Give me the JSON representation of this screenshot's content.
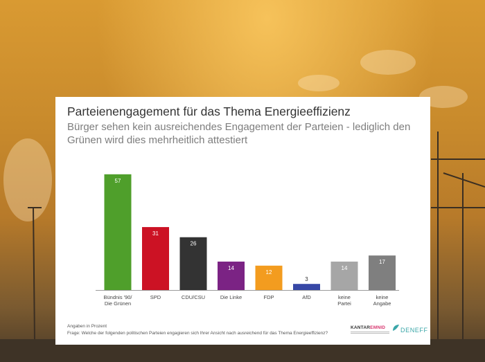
{
  "header": {
    "title": "Parteienengagement für das Thema Energieeffizienz",
    "subtitle": "Bürger sehen kein ausreichendes Engagement der Parteien - lediglich den Grünen wird dies mehrheitlich attestiert"
  },
  "footer": {
    "note_units": "Angaben in Prozent",
    "note_question": "Frage: Welche der folgenden politischen Parteien engagieren sich Ihrer Ansicht nach ausreichend für das Thema Energieeffizienz?",
    "logo_kantar_1": "KANTAR",
    "logo_kantar_2": "EMNID",
    "logo_deneff": "DENEFF"
  },
  "chart_data": {
    "type": "bar",
    "categories": [
      [
        "Bündnis '90/",
        "Die Grünen"
      ],
      [
        "SPD"
      ],
      [
        "CDU/CSU"
      ],
      [
        "Die Linke"
      ],
      [
        "FDP"
      ],
      [
        "AfD"
      ],
      [
        "keine",
        "Partei"
      ],
      [
        "keine",
        "Angabe"
      ]
    ],
    "values": [
      57,
      31,
      26,
      14,
      12,
      3,
      14,
      17
    ],
    "colors": [
      "#4f9f2b",
      "#cc1224",
      "#333333",
      "#7b2384",
      "#f39c1f",
      "#3748a6",
      "#a6a6a6",
      "#7f7f7f"
    ],
    "label_colors": [
      "#ffffff",
      "#ffffff",
      "#ffffff",
      "#ffffff",
      "#ffffff",
      "#333333",
      "#ffffff",
      "#ffffff"
    ],
    "ylim": [
      0,
      60
    ],
    "grid": false,
    "legend": "none"
  }
}
